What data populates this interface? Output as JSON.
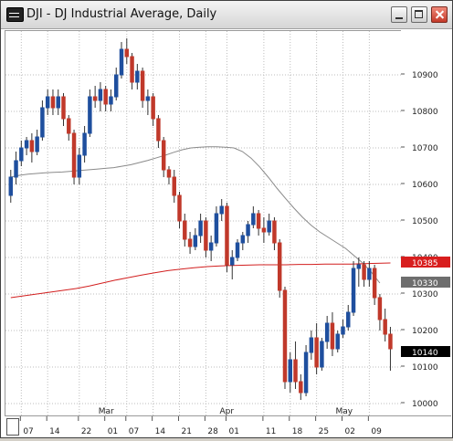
{
  "window": {
    "title": "DJI - DJ Industrial Average, Daily",
    "icon": "chart-app-icon",
    "buttons": [
      "minimize",
      "maximize",
      "close"
    ]
  },
  "chart_data": {
    "type": "candlestick",
    "y_ticks": [
      "10000",
      "10100",
      "10200",
      "10300",
      "10400",
      "10500",
      "10600",
      "10700",
      "10800",
      "10900"
    ],
    "ylim": [
      9965,
      11020
    ],
    "x_day_labels": [
      "07",
      "14",
      "22",
      "01",
      "07",
      "14",
      "21",
      "28",
      "01",
      "11",
      "18",
      "25",
      "02",
      "09"
    ],
    "x_month_labels": [
      "Mar",
      "Apr",
      "May"
    ],
    "price_tags": [
      {
        "value": "10385",
        "color": "#d81e1e"
      },
      {
        "value": "10330",
        "color": "#6e6e6e"
      },
      {
        "value": "10140",
        "color": "#000000"
      }
    ],
    "grid": true,
    "up_color": "#1f4f9e",
    "down_color": "#c0392b",
    "candles": [
      [
        10570,
        10640,
        10550,
        10620
      ],
      [
        10620,
        10690,
        10600,
        10665
      ],
      [
        10665,
        10720,
        10650,
        10700
      ],
      [
        10700,
        10730,
        10680,
        10720
      ],
      [
        10720,
        10740,
        10660,
        10690
      ],
      [
        10690,
        10750,
        10680,
        10730
      ],
      [
        10730,
        10830,
        10720,
        10810
      ],
      [
        10810,
        10860,
        10790,
        10840
      ],
      [
        10840,
        10860,
        10790,
        10810
      ],
      [
        10810,
        10860,
        10790,
        10840
      ],
      [
        10840,
        10850,
        10760,
        10780
      ],
      [
        10780,
        10790,
        10720,
        10740
      ],
      [
        10740,
        10750,
        10600,
        10620
      ],
      [
        10620,
        10700,
        10600,
        10680
      ],
      [
        10680,
        10760,
        10660,
        10740
      ],
      [
        10740,
        10860,
        10730,
        10840
      ],
      [
        10840,
        10870,
        10810,
        10830
      ],
      [
        10830,
        10880,
        10800,
        10860
      ],
      [
        10860,
        10870,
        10800,
        10820
      ],
      [
        10820,
        10860,
        10800,
        10840
      ],
      [
        10840,
        10920,
        10830,
        10900
      ],
      [
        10900,
        10990,
        10890,
        10970
      ],
      [
        10970,
        11000,
        10930,
        10950
      ],
      [
        10950,
        10960,
        10860,
        10880
      ],
      [
        10880,
        10930,
        10860,
        10910
      ],
      [
        10910,
        10920,
        10810,
        10830
      ],
      [
        10830,
        10860,
        10790,
        10840
      ],
      [
        10840,
        10850,
        10760,
        10780
      ],
      [
        10780,
        10790,
        10700,
        10720
      ],
      [
        10720,
        10730,
        10620,
        10640
      ],
      [
        10640,
        10650,
        10600,
        10620
      ],
      [
        10620,
        10640,
        10550,
        10570
      ],
      [
        10570,
        10580,
        10480,
        10500
      ],
      [
        10500,
        10520,
        10430,
        10450
      ],
      [
        10450,
        10470,
        10410,
        10430
      ],
      [
        10430,
        10480,
        10420,
        10460
      ],
      [
        10460,
        10520,
        10440,
        10500
      ],
      [
        10500,
        10510,
        10400,
        10420
      ],
      [
        10420,
        10460,
        10390,
        10440
      ],
      [
        10440,
        10540,
        10430,
        10520
      ],
      [
        10520,
        10560,
        10500,
        10540
      ],
      [
        10540,
        10550,
        10360,
        10380
      ],
      [
        10380,
        10420,
        10340,
        10400
      ],
      [
        10400,
        10450,
        10390,
        10440
      ],
      [
        10440,
        10470,
        10420,
        10460
      ],
      [
        10460,
        10500,
        10440,
        10490
      ],
      [
        10490,
        10540,
        10480,
        10520
      ],
      [
        10520,
        10530,
        10460,
        10480
      ],
      [
        10480,
        10510,
        10440,
        10470
      ],
      [
        10470,
        10520,
        10460,
        10500
      ],
      [
        10500,
        10510,
        10420,
        10440
      ],
      [
        10440,
        10450,
        10290,
        10310
      ],
      [
        10310,
        10320,
        10040,
        10060
      ],
      [
        10060,
        10140,
        10030,
        10120
      ],
      [
        10120,
        10170,
        10040,
        10060
      ],
      [
        10060,
        10080,
        10010,
        10030
      ],
      [
        10030,
        10160,
        10020,
        10140
      ],
      [
        10140,
        10200,
        10120,
        10180
      ],
      [
        10180,
        10220,
        10080,
        10100
      ],
      [
        10100,
        10180,
        10090,
        10170
      ],
      [
        10170,
        10240,
        10150,
        10220
      ],
      [
        10220,
        10250,
        10130,
        10150
      ],
      [
        10150,
        10200,
        10140,
        10190
      ],
      [
        10190,
        10230,
        10180,
        10210
      ],
      [
        10210,
        10270,
        10200,
        10250
      ],
      [
        10250,
        10390,
        10240,
        10370
      ],
      [
        10370,
        10400,
        10320,
        10380
      ],
      [
        10380,
        10390,
        10320,
        10340
      ],
      [
        10340,
        10390,
        10320,
        10370
      ],
      [
        10370,
        10380,
        10270,
        10290
      ],
      [
        10290,
        10300,
        10200,
        10230
      ],
      [
        10230,
        10260,
        10170,
        10190
      ],
      [
        10190,
        10210,
        10090,
        10150
      ]
    ],
    "series": [
      {
        "color": "#8a8a8a",
        "values": [
          10620,
          10625,
          10628,
          10630,
          10632,
          10633,
          10634,
          10636,
          10638,
          10640,
          10642,
          10644,
          10646,
          10650,
          10654,
          10660,
          10666,
          10673,
          10680,
          10688,
          10695,
          10700,
          10702,
          10703,
          10703,
          10702,
          10700,
          10690,
          10672,
          10648,
          10620,
          10590,
          10562,
          10535,
          10510,
          10488,
          10470,
          10455,
          10440,
          10425,
          10405,
          10385,
          10360,
          10330
        ]
      },
      {
        "color": "#d21f1f",
        "values": [
          10290,
          10295,
          10300,
          10305,
          10310,
          10315,
          10322,
          10330,
          10338,
          10345,
          10352,
          10358,
          10364,
          10368,
          10372,
          10375,
          10377,
          10378,
          10379,
          10380,
          10380,
          10380,
          10381,
          10381,
          10382,
          10382,
          10382,
          10383,
          10384,
          10385
        ]
      }
    ]
  }
}
